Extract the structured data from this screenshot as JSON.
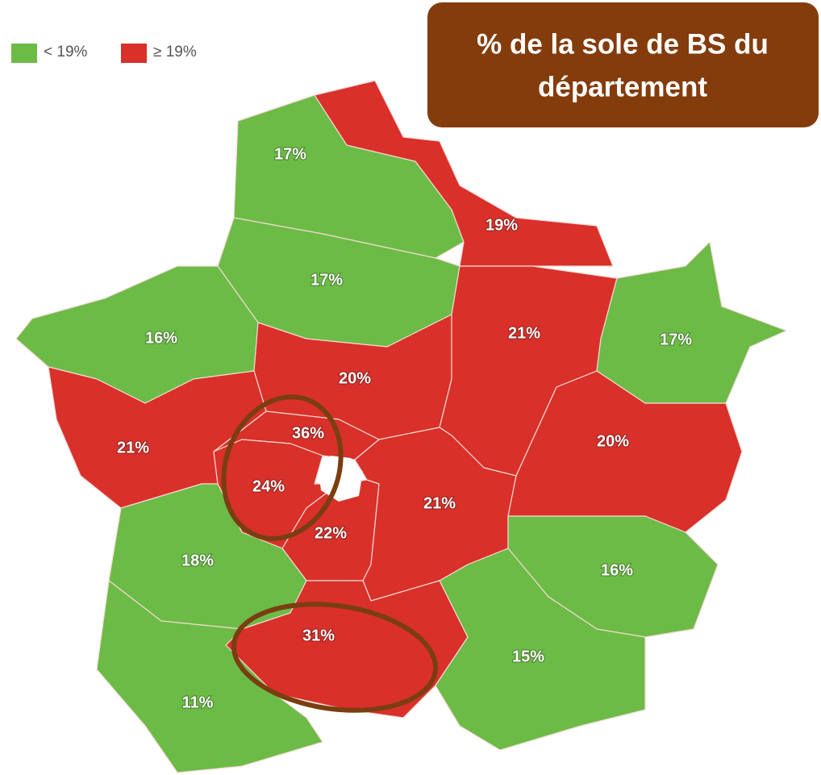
{
  "legend": [
    {
      "label": "< 19%",
      "color": "#6cbb46"
    },
    {
      "label": "≥ 19%",
      "color": "#d9302a"
    }
  ],
  "title": {
    "lines": [
      "% de la sole de BS du",
      "département"
    ],
    "color": "#843c0c"
  },
  "regions": [
    {
      "label": "17%",
      "color": "#6cbb46"
    },
    {
      "label": "19%",
      "color": "#d9302a"
    },
    {
      "label": "17%",
      "color": "#6cbb46"
    },
    {
      "label": "16%",
      "color": "#6cbb46"
    },
    {
      "label": "20%",
      "color": "#d9302a"
    },
    {
      "label": "21%",
      "color": "#d9302a"
    },
    {
      "label": "17%",
      "color": "#6cbb46"
    },
    {
      "label": "21%",
      "color": "#d9302a"
    },
    {
      "label": "36%",
      "color": "#d9302a"
    },
    {
      "label": "24%",
      "color": "#d9302a"
    },
    {
      "label": "22%",
      "color": "#d9302a"
    },
    {
      "label": "21%",
      "color": "#d9302a"
    },
    {
      "label": "20%",
      "color": "#d9302a"
    },
    {
      "label": "18%",
      "color": "#6cbb46"
    },
    {
      "label": "31%",
      "color": "#d9302a"
    },
    {
      "label": "16%",
      "color": "#6cbb46"
    },
    {
      "label": "15%",
      "color": "#6cbb46"
    },
    {
      "label": "11%",
      "color": "#6cbb46"
    }
  ]
}
